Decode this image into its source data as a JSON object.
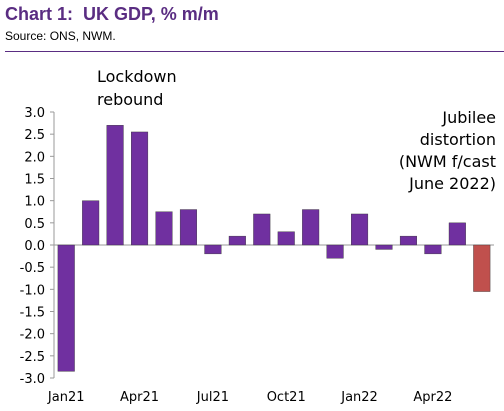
{
  "header": {
    "title": "Chart 1:  UK GDP, % m/m",
    "source": "Source:  ONS, NWM."
  },
  "colors": {
    "title": "#5a2d82",
    "divider": "#5a2d82",
    "actual_bar": "#7030a0",
    "forecast_bar": "#c0504d",
    "axis": "#999999",
    "text": "#000000",
    "plot_background": "#ffffff"
  },
  "chart_data": {
    "type": "bar",
    "title": "",
    "xlabel": "",
    "ylabel": "",
    "ylim": [
      -3.0,
      3.0
    ],
    "y_ticks": [
      "3.0",
      "2.5",
      "2.0",
      "1.5",
      "1.0",
      "0.5",
      "0.0",
      "-0.5",
      "-1.0",
      "-1.5",
      "-2.0",
      "-2.5",
      "-3.0"
    ],
    "x_tick_labels": [
      "Jan21",
      "Apr21",
      "Jul21",
      "Oct21",
      "Jan22",
      "Apr22"
    ],
    "x_tick_label_indices": [
      0,
      3,
      6,
      9,
      12,
      15
    ],
    "categories": [
      "Jan21",
      "Feb21",
      "Mar21",
      "Apr21",
      "May21",
      "Jun21",
      "Jul21",
      "Aug21",
      "Sep21",
      "Oct21",
      "Nov21",
      "Dec21",
      "Jan22",
      "Feb22",
      "Mar22",
      "Apr22",
      "May22",
      "Jun22"
    ],
    "series": [
      {
        "values": [
          -2.85,
          1.0,
          2.7,
          2.55,
          0.75,
          0.8,
          -0.2,
          0.2,
          0.7,
          0.3,
          0.8,
          -0.3,
          0.7,
          -0.1,
          0.2,
          -0.2,
          0.5,
          null
        ],
        "color": "#7030a0"
      },
      {
        "values": [
          null,
          null,
          null,
          null,
          null,
          null,
          null,
          null,
          null,
          null,
          null,
          null,
          null,
          null,
          null,
          null,
          null,
          -1.05
        ],
        "color": "#c0504d"
      }
    ],
    "grid": false,
    "legend": "none",
    "annotations": [
      {
        "lines": [
          "Lockdown",
          "rebound"
        ],
        "anchor": "above Mar21-Apr21 bars"
      },
      {
        "lines": [
          "Jubilee",
          "distortion",
          "(NWM f/cast",
          "June 2022)"
        ],
        "anchor": "upper right"
      }
    ]
  }
}
